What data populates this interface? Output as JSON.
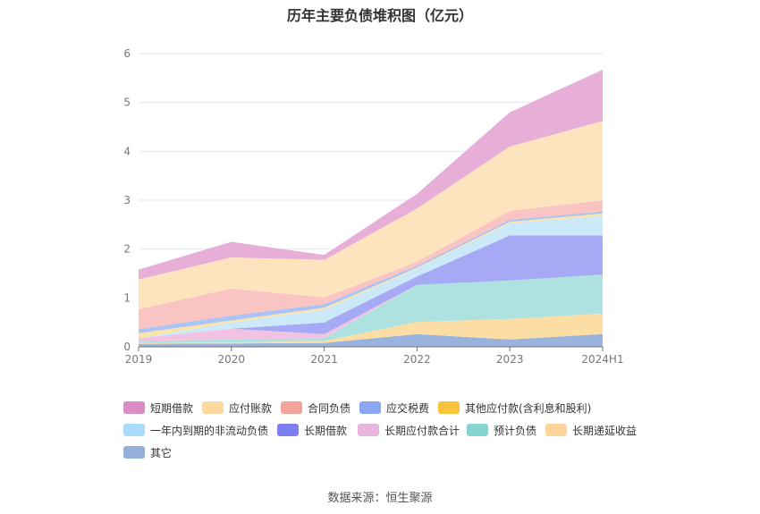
{
  "chart_data": {
    "type": "area",
    "stacked": true,
    "title": "历年主要负债堆积图（亿元）",
    "categories": [
      "2019",
      "2020",
      "2021",
      "2022",
      "2023",
      "2024H1"
    ],
    "ylim": [
      0,
      6
    ],
    "yticks": [
      "0",
      "1",
      "2",
      "3",
      "4",
      "5",
      "6"
    ],
    "grid": true,
    "legend_position": "bottom",
    "series": [
      {
        "name": "其它",
        "color": "#93afda",
        "values": [
          0.06,
          0.07,
          0.08,
          0.26,
          0.15,
          0.26
        ]
      },
      {
        "name": "长期递延收益",
        "color": "#fcdca0",
        "values": [
          0.02,
          0.02,
          0.04,
          0.25,
          0.42,
          0.42
        ]
      },
      {
        "name": "预计负债",
        "color": "#a9e0df",
        "values": [
          0.04,
          0.06,
          0.06,
          0.76,
          0.79,
          0.8
        ]
      },
      {
        "name": "长期应付款合计",
        "color": "#f1bfe0",
        "values": [
          0.06,
          0.22,
          0.08,
          0.0,
          0.0,
          0.0
        ]
      },
      {
        "name": "长期借款",
        "color": "#a1a4f3",
        "values": [
          0.0,
          0.0,
          0.24,
          0.17,
          0.92,
          0.8
        ]
      },
      {
        "name": "一年内到期的非流动负债",
        "color": "#c9e8fa",
        "values": [
          0.0,
          0.13,
          0.26,
          0.16,
          0.25,
          0.4
        ]
      },
      {
        "name": "其他应付款(含利息和股利)",
        "color": "#fbe3a3",
        "values": [
          0.1,
          0.04,
          0.04,
          0.02,
          0.03,
          0.05
        ]
      },
      {
        "name": "应交税费",
        "color": "#a8c0f5",
        "values": [
          0.08,
          0.1,
          0.07,
          0.04,
          0.04,
          0.04
        ]
      },
      {
        "name": "合同负债",
        "color": "#f9c1be",
        "values": [
          0.41,
          0.55,
          0.14,
          0.08,
          0.18,
          0.23
        ]
      },
      {
        "name": "应付账款",
        "color": "#fde3bc",
        "values": [
          0.61,
          0.64,
          0.77,
          1.09,
          1.32,
          1.62
        ]
      },
      {
        "name": "短期借款",
        "color": "#e6abd6",
        "values": [
          0.2,
          0.32,
          0.1,
          0.3,
          0.7,
          1.05
        ]
      }
    ]
  },
  "legend": [
    {
      "label": "短期借款",
      "color": "#d98cc6"
    },
    {
      "label": "应付账款",
      "color": "#fdd9a0"
    },
    {
      "label": "合同负债",
      "color": "#f4a29c"
    },
    {
      "label": "应交税费",
      "color": "#8aa7f3"
    },
    {
      "label": "其他应付款(含利息和股利)",
      "color": "#f9c23c"
    },
    {
      "label": "一年内到期的非流动负债",
      "color": "#a8dcfa"
    },
    {
      "label": "长期借款",
      "color": "#7d7ff0"
    },
    {
      "label": "长期应付款合计",
      "color": "#e8b4dc"
    },
    {
      "label": "预计负债",
      "color": "#85d5d2"
    },
    {
      "label": "长期递延收益",
      "color": "#fdd59a"
    },
    {
      "label": "其它",
      "color": "#93afda"
    }
  ],
  "source": "数据来源：恒生聚源"
}
